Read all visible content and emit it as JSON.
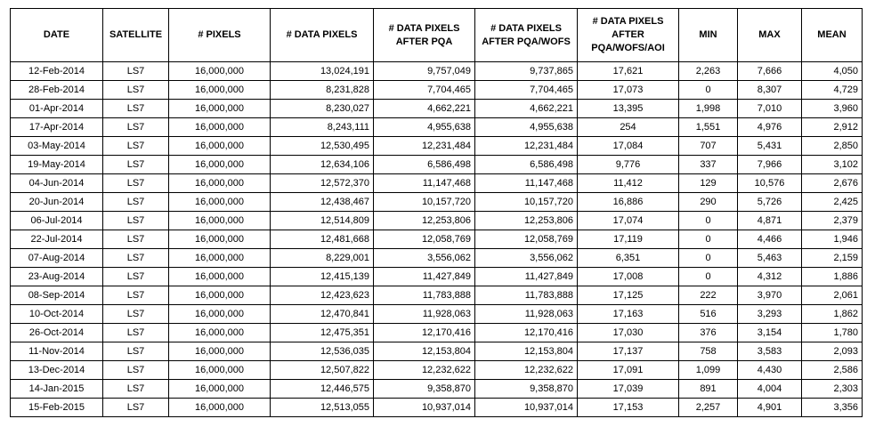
{
  "headers": [
    {
      "key": "date",
      "label": "DATE"
    },
    {
      "key": "satellite",
      "label": "SATELLITE"
    },
    {
      "key": "pixels",
      "label": "# PIXELS"
    },
    {
      "key": "data_pixels",
      "label": "# DATA PIXELS"
    },
    {
      "key": "after_pqa",
      "label": "# DATA PIXELS AFTER PQA"
    },
    {
      "key": "after_pqa_wofs",
      "label": "# DATA PIXELS AFTER PQA/WOFS"
    },
    {
      "key": "after_pqa_wofs_aoi",
      "label": "# DATA PIXELS AFTER PQA/WOFS/AOI"
    },
    {
      "key": "min",
      "label": "MIN"
    },
    {
      "key": "max",
      "label": "MAX"
    },
    {
      "key": "mean",
      "label": "MEAN"
    }
  ],
  "rows": [
    [
      "12-Feb-2014",
      "LS7",
      "16,000,000",
      "13,024,191",
      "9,757,049",
      "9,737,865",
      "17,621",
      "2,263",
      "7,666",
      "4,050"
    ],
    [
      "28-Feb-2014",
      "LS7",
      "16,000,000",
      "8,231,828",
      "7,704,465",
      "7,704,465",
      "17,073",
      "0",
      "8,307",
      "4,729"
    ],
    [
      "01-Apr-2014",
      "LS7",
      "16,000,000",
      "8,230,027",
      "4,662,221",
      "4,662,221",
      "13,395",
      "1,998",
      "7,010",
      "3,960"
    ],
    [
      "17-Apr-2014",
      "LS7",
      "16,000,000",
      "8,243,111",
      "4,955,638",
      "4,955,638",
      "254",
      "1,551",
      "4,976",
      "2,912"
    ],
    [
      "03-May-2014",
      "LS7",
      "16,000,000",
      "12,530,495",
      "12,231,484",
      "12,231,484",
      "17,084",
      "707",
      "5,431",
      "2,850"
    ],
    [
      "19-May-2014",
      "LS7",
      "16,000,000",
      "12,634,106",
      "6,586,498",
      "6,586,498",
      "9,776",
      "337",
      "7,966",
      "3,102"
    ],
    [
      "04-Jun-2014",
      "LS7",
      "16,000,000",
      "12,572,370",
      "11,147,468",
      "11,147,468",
      "11,412",
      "129",
      "10,576",
      "2,676"
    ],
    [
      "20-Jun-2014",
      "LS7",
      "16,000,000",
      "12,438,467",
      "10,157,720",
      "10,157,720",
      "16,886",
      "290",
      "5,726",
      "2,425"
    ],
    [
      "06-Jul-2014",
      "LS7",
      "16,000,000",
      "12,514,809",
      "12,253,806",
      "12,253,806",
      "17,074",
      "0",
      "4,871",
      "2,379"
    ],
    [
      "22-Jul-2014",
      "LS7",
      "16,000,000",
      "12,481,668",
      "12,058,769",
      "12,058,769",
      "17,119",
      "0",
      "4,466",
      "1,946"
    ],
    [
      "07-Aug-2014",
      "LS7",
      "16,000,000",
      "8,229,001",
      "3,556,062",
      "3,556,062",
      "6,351",
      "0",
      "5,463",
      "2,159"
    ],
    [
      "23-Aug-2014",
      "LS7",
      "16,000,000",
      "12,415,139",
      "11,427,849",
      "11,427,849",
      "17,008",
      "0",
      "4,312",
      "1,886"
    ],
    [
      "08-Sep-2014",
      "LS7",
      "16,000,000",
      "12,423,623",
      "11,783,888",
      "11,783,888",
      "17,125",
      "222",
      "3,970",
      "2,061"
    ],
    [
      "10-Oct-2014",
      "LS7",
      "16,000,000",
      "12,470,841",
      "11,928,063",
      "11,928,063",
      "17,163",
      "516",
      "3,293",
      "1,862"
    ],
    [
      "26-Oct-2014",
      "LS7",
      "16,000,000",
      "12,475,351",
      "12,170,416",
      "12,170,416",
      "17,030",
      "376",
      "3,154",
      "1,780"
    ],
    [
      "11-Nov-2014",
      "LS7",
      "16,000,000",
      "12,536,035",
      "12,153,804",
      "12,153,804",
      "17,137",
      "758",
      "3,583",
      "2,093"
    ],
    [
      "13-Dec-2014",
      "LS7",
      "16,000,000",
      "12,507,822",
      "12,232,622",
      "12,232,622",
      "17,091",
      "1,099",
      "4,430",
      "2,586"
    ],
    [
      "14-Jan-2015",
      "LS7",
      "16,000,000",
      "12,446,575",
      "9,358,870",
      "9,358,870",
      "17,039",
      "891",
      "4,004",
      "2,303"
    ],
    [
      "15-Feb-2015",
      "LS7",
      "16,000,000",
      "12,513,055",
      "10,937,014",
      "10,937,014",
      "17,153",
      "2,257",
      "4,901",
      "3,356"
    ]
  ]
}
